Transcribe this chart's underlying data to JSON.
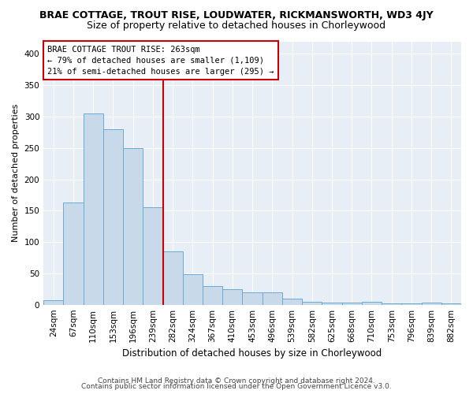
{
  "title1": "BRAE COTTAGE, TROUT RISE, LOUDWATER, RICKMANSWORTH, WD3 4JY",
  "title2": "Size of property relative to detached houses in Chorleywood",
  "xlabel": "Distribution of detached houses by size in Chorleywood",
  "ylabel": "Number of detached properties",
  "categories": [
    "24sqm",
    "67sqm",
    "110sqm",
    "153sqm",
    "196sqm",
    "239sqm",
    "282sqm",
    "324sqm",
    "367sqm",
    "410sqm",
    "453sqm",
    "496sqm",
    "539sqm",
    "582sqm",
    "625sqm",
    "668sqm",
    "710sqm",
    "753sqm",
    "796sqm",
    "839sqm",
    "882sqm"
  ],
  "values": [
    7,
    163,
    305,
    280,
    250,
    155,
    85,
    48,
    30,
    25,
    20,
    20,
    10,
    5,
    3,
    3,
    5,
    2,
    2,
    3,
    2
  ],
  "bar_color": "#c8daea",
  "bar_edge_color": "#6aaad4",
  "annotation_box_text": "BRAE COTTAGE TROUT RISE: 263sqm\n← 79% of detached houses are smaller (1,109)\n21% of semi-detached houses are larger (295) →",
  "vline_color": "#cc0000",
  "vline_x": 5.5,
  "ylim": [
    0,
    420
  ],
  "yticks": [
    0,
    50,
    100,
    150,
    200,
    250,
    300,
    350,
    400
  ],
  "fig_bg": "#ffffff",
  "plot_bg": "#e8eef5",
  "footer1": "Contains HM Land Registry data © Crown copyright and database right 2024.",
  "footer2": "Contains public sector information licensed under the Open Government Licence v3.0.",
  "title1_fontsize": 9,
  "title2_fontsize": 9,
  "xlabel_fontsize": 8.5,
  "ylabel_fontsize": 8,
  "tick_fontsize": 7.5,
  "annotation_fontsize": 7.5,
  "footer_fontsize": 6.5
}
